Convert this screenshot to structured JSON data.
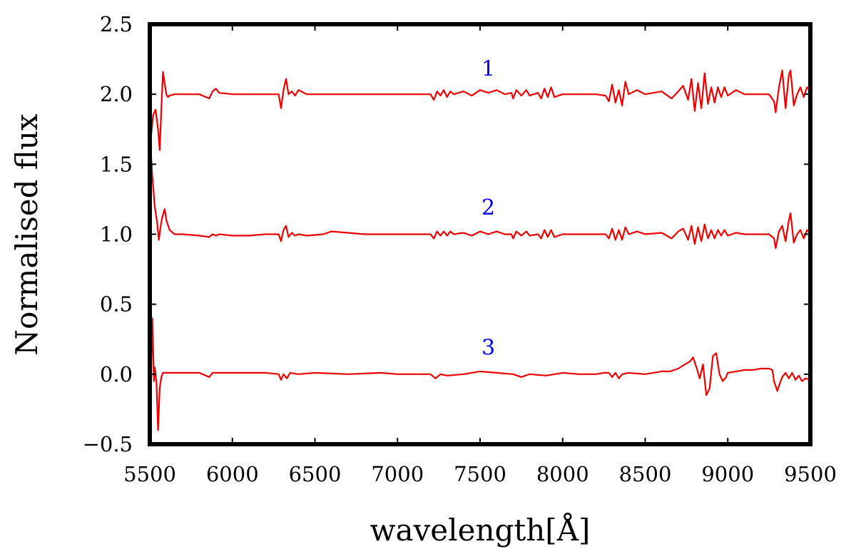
{
  "chart_data": {
    "type": "line",
    "title": "",
    "xlabel": "wavelength[Å]",
    "ylabel": "Normalised flux",
    "xlim": [
      5500,
      9500
    ],
    "ylim": [
      -0.5,
      2.5
    ],
    "x_ticks": [
      5500,
      6000,
      6500,
      7000,
      7500,
      8000,
      8500,
      9000,
      9500
    ],
    "y_ticks": [
      -0.5,
      0.0,
      0.5,
      1.0,
      1.5,
      2.0,
      2.5
    ],
    "x_tick_labels": [
      "5500",
      "6000",
      "6500",
      "7000",
      "7500",
      "8000",
      "8500",
      "9000",
      "9500"
    ],
    "y_tick_labels": [
      "−0.5",
      "0.0",
      "0.5",
      "1.0",
      "1.5",
      "2.0",
      "2.5"
    ],
    "line_color": "#ee0000",
    "label_color": "#0000ee",
    "grid": false,
    "legend": "none",
    "series": [
      {
        "name": "1",
        "label_x": 7550,
        "label_y": 2.13,
        "x": [
          5510,
          5520,
          5535,
          5550,
          5560,
          5570,
          5580,
          5590,
          5600,
          5610,
          5620,
          5650,
          5700,
          5800,
          5860,
          5880,
          5900,
          5920,
          6000,
          6100,
          6200,
          6280,
          6295,
          6310,
          6325,
          6340,
          6360,
          6380,
          6400,
          6450,
          6600,
          6800,
          7000,
          7200,
          7220,
          7240,
          7260,
          7280,
          7300,
          7320,
          7340,
          7400,
          7450,
          7500,
          7550,
          7600,
          7650,
          7690,
          7700,
          7720,
          7750,
          7780,
          7800,
          7850,
          7870,
          7890,
          7910,
          7930,
          7950,
          8000,
          8100,
          8200,
          8260,
          8280,
          8300,
          8320,
          8340,
          8360,
          8380,
          8400,
          8450,
          8500,
          8600,
          8660,
          8700,
          8730,
          8760,
          8780,
          8800,
          8820,
          8840,
          8860,
          8880,
          8900,
          8920,
          8940,
          8960,
          8980,
          9000,
          9050,
          9100,
          9150,
          9200,
          9250,
          9280,
          9290,
          9310,
          9330,
          9350,
          9370,
          9380,
          9400,
          9420,
          9440,
          9460,
          9480,
          9500
        ],
        "y": [
          1.72,
          1.85,
          1.89,
          1.75,
          1.6,
          1.9,
          2.16,
          2.08,
          2.0,
          1.98,
          1.99,
          2.0,
          2.0,
          2.0,
          1.97,
          2.02,
          2.04,
          2.01,
          2.0,
          2.0,
          2.0,
          2.0,
          1.9,
          2.03,
          2.11,
          2.0,
          2.02,
          1.99,
          2.03,
          2.0,
          2.0,
          2.0,
          2.0,
          2.0,
          1.96,
          2.02,
          1.99,
          2.03,
          1.98,
          2.02,
          2.0,
          2.02,
          1.99,
          2.03,
          2.01,
          2.03,
          2.0,
          2.01,
          1.97,
          2.03,
          1.99,
          2.03,
          1.99,
          2.01,
          1.97,
          2.04,
          1.98,
          2.05,
          1.98,
          2.0,
          2.0,
          2.0,
          1.99,
          1.95,
          2.07,
          1.94,
          2.03,
          1.92,
          2.09,
          2.0,
          2.03,
          2.0,
          2.02,
          1.97,
          2.02,
          2.06,
          1.96,
          2.11,
          1.88,
          2.08,
          1.9,
          2.15,
          1.93,
          2.05,
          1.94,
          2.05,
          1.98,
          2.05,
          1.99,
          2.03,
          2.0,
          2.0,
          2.0,
          2.0,
          1.95,
          1.87,
          2.05,
          2.17,
          1.9,
          2.14,
          2.17,
          1.92,
          2.0,
          2.05,
          1.98,
          2.05,
          2.03
        ]
      },
      {
        "name": "2",
        "label_x": 7550,
        "label_y": 1.14,
        "x": [
          5505,
          5515,
          5530,
          5545,
          5555,
          5565,
          5575,
          5590,
          5600,
          5620,
          5650,
          5700,
          5800,
          5860,
          5880,
          5900,
          5920,
          6000,
          6100,
          6200,
          6280,
          6295,
          6310,
          6325,
          6340,
          6360,
          6380,
          6400,
          6450,
          6550,
          6600,
          6700,
          6800,
          7000,
          7200,
          7220,
          7240,
          7260,
          7280,
          7300,
          7320,
          7340,
          7400,
          7450,
          7500,
          7550,
          7600,
          7650,
          7690,
          7700,
          7720,
          7750,
          7780,
          7800,
          7850,
          7870,
          7890,
          7910,
          7930,
          7950,
          8000,
          8100,
          8200,
          8260,
          8280,
          8300,
          8320,
          8340,
          8360,
          8380,
          8400,
          8450,
          8500,
          8600,
          8660,
          8700,
          8730,
          8760,
          8780,
          8800,
          8820,
          8840,
          8860,
          8880,
          8900,
          8920,
          8940,
          8960,
          8980,
          9000,
          9050,
          9100,
          9150,
          9200,
          9250,
          9280,
          9290,
          9310,
          9330,
          9350,
          9370,
          9380,
          9400,
          9420,
          9440,
          9460,
          9480,
          9500
        ],
        "y": [
          1.62,
          1.42,
          1.2,
          1.08,
          0.96,
          1.05,
          1.12,
          1.18,
          1.1,
          1.03,
          1.0,
          1.0,
          0.99,
          0.98,
          1.0,
          0.99,
          1.0,
          0.99,
          0.99,
          1.0,
          1.0,
          0.95,
          1.03,
          1.06,
          0.98,
          1.01,
          0.99,
          1.0,
          0.99,
          1.0,
          1.02,
          1.01,
          1.0,
          1.0,
          1.0,
          0.97,
          1.02,
          0.99,
          1.02,
          0.99,
          1.02,
          1.0,
          1.01,
          0.99,
          1.02,
          1.0,
          1.02,
          1.0,
          1.0,
          0.97,
          1.02,
          0.99,
          1.02,
          0.99,
          1.0,
          0.97,
          1.03,
          0.98,
          1.03,
          0.98,
          1.0,
          1.0,
          1.0,
          1.0,
          0.97,
          1.04,
          0.96,
          1.03,
          0.96,
          1.05,
          1.0,
          1.02,
          1.0,
          1.01,
          0.97,
          1.02,
          1.04,
          0.96,
          1.06,
          0.93,
          1.05,
          0.95,
          1.07,
          0.97,
          1.03,
          0.97,
          1.03,
          0.99,
          1.03,
          0.99,
          1.01,
          1.0,
          1.0,
          1.0,
          1.0,
          0.97,
          0.9,
          1.02,
          1.06,
          0.95,
          1.1,
          1.15,
          0.94,
          1.0,
          1.03,
          0.97,
          1.03,
          1.01
        ]
      },
      {
        "name": "3",
        "label_x": 7550,
        "label_y": 0.14,
        "x": [
          5505,
          5510,
          5515,
          5520,
          5525,
          5530,
          5540,
          5550,
          5560,
          5570,
          5580,
          5600,
          5620,
          5700,
          5800,
          5860,
          5880,
          5900,
          6000,
          6100,
          6200,
          6280,
          6295,
          6310,
          6330,
          6350,
          6400,
          6500,
          6700,
          6900,
          7000,
          7200,
          7230,
          7260,
          7300,
          7400,
          7500,
          7600,
          7700,
          7750,
          7800,
          7900,
          8000,
          8100,
          8200,
          8250,
          8280,
          8300,
          8320,
          8340,
          8360,
          8400,
          8500,
          8600,
          8650,
          8700,
          8740,
          8770,
          8790,
          8810,
          8830,
          8850,
          8870,
          8890,
          8910,
          8930,
          8950,
          8970,
          8990,
          9000,
          9050,
          9100,
          9150,
          9200,
          9250,
          9270,
          9280,
          9300,
          9320,
          9330,
          9350,
          9370,
          9390,
          9410,
          9430,
          9450,
          9470,
          9500
        ],
        "y": [
          -0.3,
          0.1,
          0.4,
          0.2,
          -0.05,
          0.05,
          -0.05,
          -0.4,
          -0.1,
          -0.02,
          0.01,
          0.01,
          0.01,
          0.01,
          0.01,
          -0.02,
          0.01,
          0.01,
          0.01,
          0.01,
          0.01,
          0.0,
          -0.04,
          0.0,
          -0.03,
          0.01,
          0.0,
          0.01,
          0.0,
          0.01,
          0.0,
          0.0,
          -0.03,
          0.0,
          -0.01,
          0.0,
          0.02,
          0.01,
          0.0,
          -0.02,
          0.0,
          -0.01,
          0.01,
          0.0,
          0.0,
          0.01,
          0.01,
          -0.02,
          0.01,
          -0.03,
          0.0,
          0.01,
          0.0,
          0.02,
          0.02,
          0.04,
          0.07,
          0.09,
          0.12,
          0.05,
          -0.03,
          0.07,
          -0.15,
          -0.1,
          0.13,
          0.15,
          0.0,
          -0.05,
          -0.02,
          0.01,
          0.02,
          0.03,
          0.03,
          0.04,
          0.04,
          0.03,
          -0.05,
          -0.12,
          -0.05,
          -0.02,
          0.01,
          -0.03,
          0.01,
          -0.04,
          -0.01,
          -0.05,
          -0.03,
          -0.04
        ]
      }
    ]
  }
}
